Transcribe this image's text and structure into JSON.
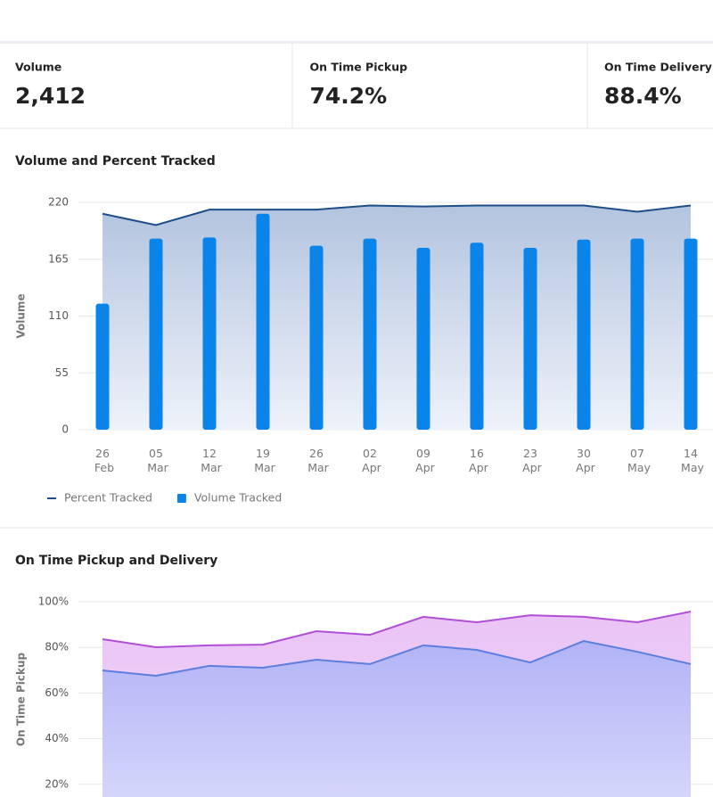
{
  "kpis": [
    {
      "label": "Volume",
      "value": "2,412"
    },
    {
      "label": "On Time Pickup",
      "value": "74.2%"
    },
    {
      "label": "On Time Delivery",
      "value": "88.4%"
    }
  ],
  "chart_data": [
    {
      "type": "bar",
      "title": "Volume and Percent Tracked",
      "y_label": "Volume",
      "categories": [
        "26 Feb",
        "05 Mar",
        "12 Mar",
        "19 Mar",
        "26 Mar",
        "02 Apr",
        "09 Apr",
        "16 Apr",
        "23 Apr",
        "30 Apr",
        "07 May",
        "14 May"
      ],
      "series": [
        {
          "name": "Percent Tracked",
          "type": "area",
          "color": "#1d4e89",
          "values": [
            209,
            198,
            213,
            213,
            213,
            217,
            216,
            217,
            217,
            217,
            211,
            217
          ]
        },
        {
          "name": "Volume Tracked",
          "type": "bar",
          "color": "#0b84ea",
          "values": [
            122,
            185,
            186,
            209,
            178,
            185,
            176,
            181,
            176,
            184,
            185,
            185
          ]
        }
      ],
      "ylim": [
        0,
        220
      ],
      "yticks": [
        0,
        55,
        110,
        165,
        220
      ],
      "grid": true,
      "legend": "bottom-left"
    },
    {
      "type": "area",
      "title": "On Time Pickup and Delivery",
      "y_label": "On Time Pickup",
      "series": [
        {
          "color": "#b04fd6",
          "values": [
            83.6,
            80.1,
            80.9,
            81.2,
            87.1,
            85.5,
            93.4,
            91.0,
            94.1,
            93.4,
            91.0,
            95.7
          ]
        },
        {
          "color": "#5b7ee0",
          "values": [
            69.9,
            67.6,
            71.9,
            71.1,
            74.6,
            72.7,
            80.9,
            78.9,
            73.4,
            82.8,
            78.1,
            72.7
          ]
        }
      ],
      "ylim": [
        0,
        100
      ],
      "yticks": [
        {
          "value": 20,
          "label": "20%"
        },
        {
          "value": 40,
          "label": "40%"
        },
        {
          "value": 60,
          "label": "60%"
        },
        {
          "value": 80,
          "label": "80%"
        },
        {
          "value": 100,
          "label": "100%"
        }
      ],
      "grid": true
    }
  ]
}
